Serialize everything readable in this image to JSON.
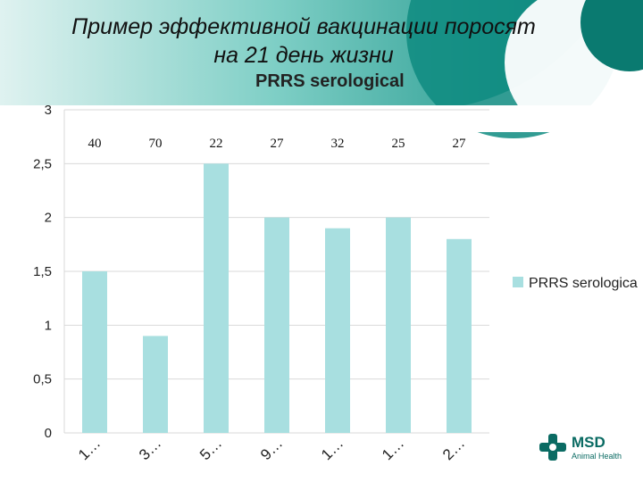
{
  "slide": {
    "title_line1": "Пример эффективной вакцинации поросят",
    "title_line2": "на 21 день жизни"
  },
  "colors": {
    "bar": "#a8dfe0",
    "teal_dark": "#0b7f76",
    "teal_light": "#2aa79c",
    "grid": "#d9d9d9"
  },
  "brand": {
    "name": "MSD",
    "sub": "Animal Health"
  },
  "chart_data": {
    "type": "bar",
    "title": "PRRS serological",
    "categories": [
      "1…",
      "3…",
      "5…",
      "9…",
      "1…",
      "1…",
      "2…"
    ],
    "series": [
      {
        "name": "PRRS serologica",
        "values": [
          1.5,
          0.9,
          2.5,
          2.0,
          1.9,
          2.0,
          1.8
        ],
        "color": "#a8dfe0"
      }
    ],
    "counts": [
      "40",
      "70",
      "22",
      "27",
      "32",
      "25",
      "27"
    ],
    "yticks": [
      "0",
      "0,5",
      "1",
      "1,5",
      "2",
      "2,5",
      "3"
    ],
    "ylim": [
      0,
      3
    ],
    "grid": true,
    "legend_position": "right"
  }
}
